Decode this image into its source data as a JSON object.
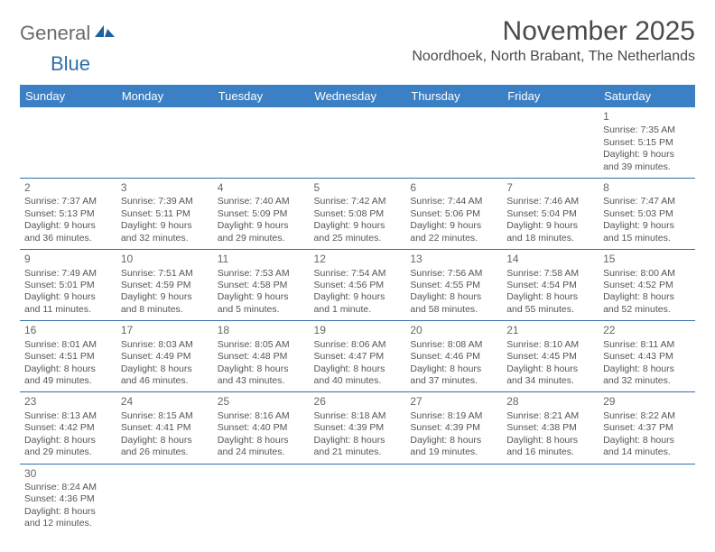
{
  "logo": {
    "part1": "General",
    "part2": "Blue"
  },
  "title": "November 2025",
  "location": "Noordhoek, North Brabant, The Netherlands",
  "colors": {
    "header_bg": "#3b7fc4",
    "header_fg": "#ffffff",
    "border": "#2f6fa8",
    "text": "#555555",
    "logo_gray": "#6b6b6b",
    "logo_blue": "#2f6fa8"
  },
  "weekdays": [
    "Sunday",
    "Monday",
    "Tuesday",
    "Wednesday",
    "Thursday",
    "Friday",
    "Saturday"
  ],
  "weeks": [
    [
      null,
      null,
      null,
      null,
      null,
      null,
      {
        "n": "1",
        "sr": "7:35 AM",
        "ss": "5:15 PM",
        "dl": "9 hours and 39 minutes."
      }
    ],
    [
      {
        "n": "2",
        "sr": "7:37 AM",
        "ss": "5:13 PM",
        "dl": "9 hours and 36 minutes."
      },
      {
        "n": "3",
        "sr": "7:39 AM",
        "ss": "5:11 PM",
        "dl": "9 hours and 32 minutes."
      },
      {
        "n": "4",
        "sr": "7:40 AM",
        "ss": "5:09 PM",
        "dl": "9 hours and 29 minutes."
      },
      {
        "n": "5",
        "sr": "7:42 AM",
        "ss": "5:08 PM",
        "dl": "9 hours and 25 minutes."
      },
      {
        "n": "6",
        "sr": "7:44 AM",
        "ss": "5:06 PM",
        "dl": "9 hours and 22 minutes."
      },
      {
        "n": "7",
        "sr": "7:46 AM",
        "ss": "5:04 PM",
        "dl": "9 hours and 18 minutes."
      },
      {
        "n": "8",
        "sr": "7:47 AM",
        "ss": "5:03 PM",
        "dl": "9 hours and 15 minutes."
      }
    ],
    [
      {
        "n": "9",
        "sr": "7:49 AM",
        "ss": "5:01 PM",
        "dl": "9 hours and 11 minutes."
      },
      {
        "n": "10",
        "sr": "7:51 AM",
        "ss": "4:59 PM",
        "dl": "9 hours and 8 minutes."
      },
      {
        "n": "11",
        "sr": "7:53 AM",
        "ss": "4:58 PM",
        "dl": "9 hours and 5 minutes."
      },
      {
        "n": "12",
        "sr": "7:54 AM",
        "ss": "4:56 PM",
        "dl": "9 hours and 1 minute."
      },
      {
        "n": "13",
        "sr": "7:56 AM",
        "ss": "4:55 PM",
        "dl": "8 hours and 58 minutes."
      },
      {
        "n": "14",
        "sr": "7:58 AM",
        "ss": "4:54 PM",
        "dl": "8 hours and 55 minutes."
      },
      {
        "n": "15",
        "sr": "8:00 AM",
        "ss": "4:52 PM",
        "dl": "8 hours and 52 minutes."
      }
    ],
    [
      {
        "n": "16",
        "sr": "8:01 AM",
        "ss": "4:51 PM",
        "dl": "8 hours and 49 minutes."
      },
      {
        "n": "17",
        "sr": "8:03 AM",
        "ss": "4:49 PM",
        "dl": "8 hours and 46 minutes."
      },
      {
        "n": "18",
        "sr": "8:05 AM",
        "ss": "4:48 PM",
        "dl": "8 hours and 43 minutes."
      },
      {
        "n": "19",
        "sr": "8:06 AM",
        "ss": "4:47 PM",
        "dl": "8 hours and 40 minutes."
      },
      {
        "n": "20",
        "sr": "8:08 AM",
        "ss": "4:46 PM",
        "dl": "8 hours and 37 minutes."
      },
      {
        "n": "21",
        "sr": "8:10 AM",
        "ss": "4:45 PM",
        "dl": "8 hours and 34 minutes."
      },
      {
        "n": "22",
        "sr": "8:11 AM",
        "ss": "4:43 PM",
        "dl": "8 hours and 32 minutes."
      }
    ],
    [
      {
        "n": "23",
        "sr": "8:13 AM",
        "ss": "4:42 PM",
        "dl": "8 hours and 29 minutes."
      },
      {
        "n": "24",
        "sr": "8:15 AM",
        "ss": "4:41 PM",
        "dl": "8 hours and 26 minutes."
      },
      {
        "n": "25",
        "sr": "8:16 AM",
        "ss": "4:40 PM",
        "dl": "8 hours and 24 minutes."
      },
      {
        "n": "26",
        "sr": "8:18 AM",
        "ss": "4:39 PM",
        "dl": "8 hours and 21 minutes."
      },
      {
        "n": "27",
        "sr": "8:19 AM",
        "ss": "4:39 PM",
        "dl": "8 hours and 19 minutes."
      },
      {
        "n": "28",
        "sr": "8:21 AM",
        "ss": "4:38 PM",
        "dl": "8 hours and 16 minutes."
      },
      {
        "n": "29",
        "sr": "8:22 AM",
        "ss": "4:37 PM",
        "dl": "8 hours and 14 minutes."
      }
    ],
    [
      {
        "n": "30",
        "sr": "8:24 AM",
        "ss": "4:36 PM",
        "dl": "8 hours and 12 minutes."
      },
      null,
      null,
      null,
      null,
      null,
      null
    ]
  ],
  "labels": {
    "sunrise": "Sunrise: ",
    "sunset": "Sunset: ",
    "daylight": "Daylight: "
  }
}
